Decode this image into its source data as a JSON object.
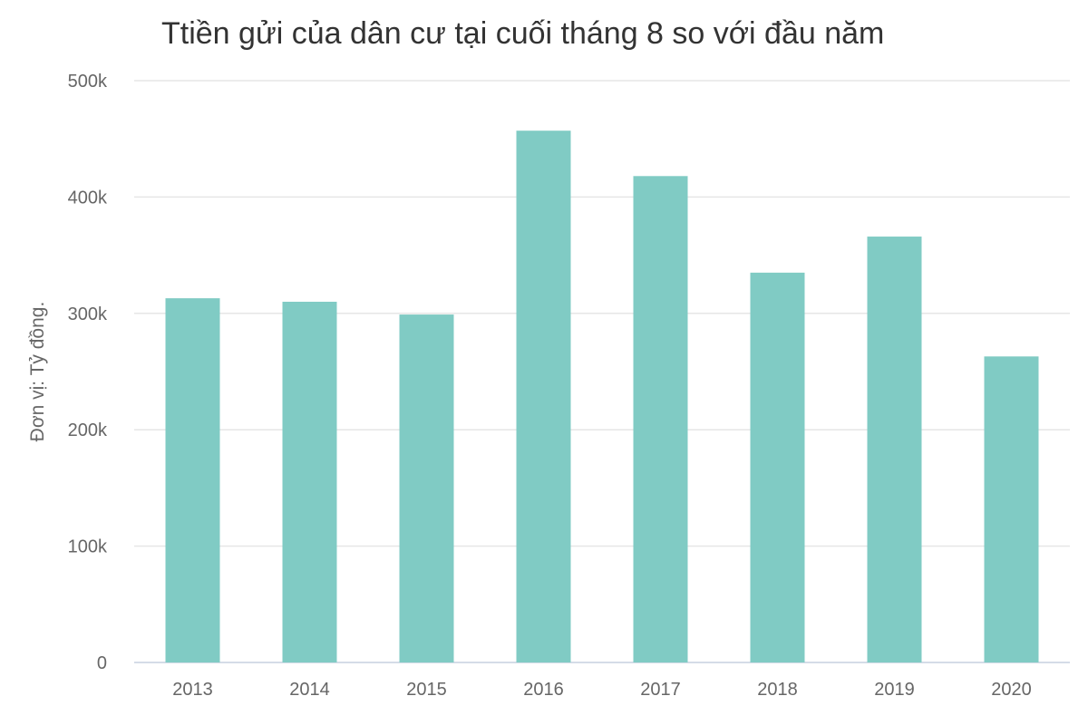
{
  "chart": {
    "title": "Ttiền gửi của dân cư tại cuối tháng 8 so với đầu năm",
    "ylabel": "Đơn vị: Tỷ đồng."
  },
  "colors": {
    "bar": "#80cbc4",
    "grid": "#e6e6e6",
    "axis": "#c7d1df",
    "text": "#666666",
    "title": "#333333"
  },
  "chart_data": {
    "type": "bar",
    "title": "Ttiền gửi của dân cư tại cuối tháng 8 so với đầu năm",
    "xlabel": "",
    "ylabel": "Đơn vị: Tỷ đồng.",
    "categories": [
      "2013",
      "2014",
      "2015",
      "2016",
      "2017",
      "2018",
      "2019",
      "2020"
    ],
    "values": [
      313000,
      310000,
      299000,
      457000,
      418000,
      335000,
      366000,
      263000
    ],
    "ylim": [
      0,
      500000
    ],
    "yticks": [
      0,
      100000,
      200000,
      300000,
      400000,
      500000
    ],
    "ytick_labels": [
      "0",
      "100k",
      "200k",
      "300k",
      "400k",
      "500k"
    ],
    "grid": true,
    "legend": "none"
  }
}
